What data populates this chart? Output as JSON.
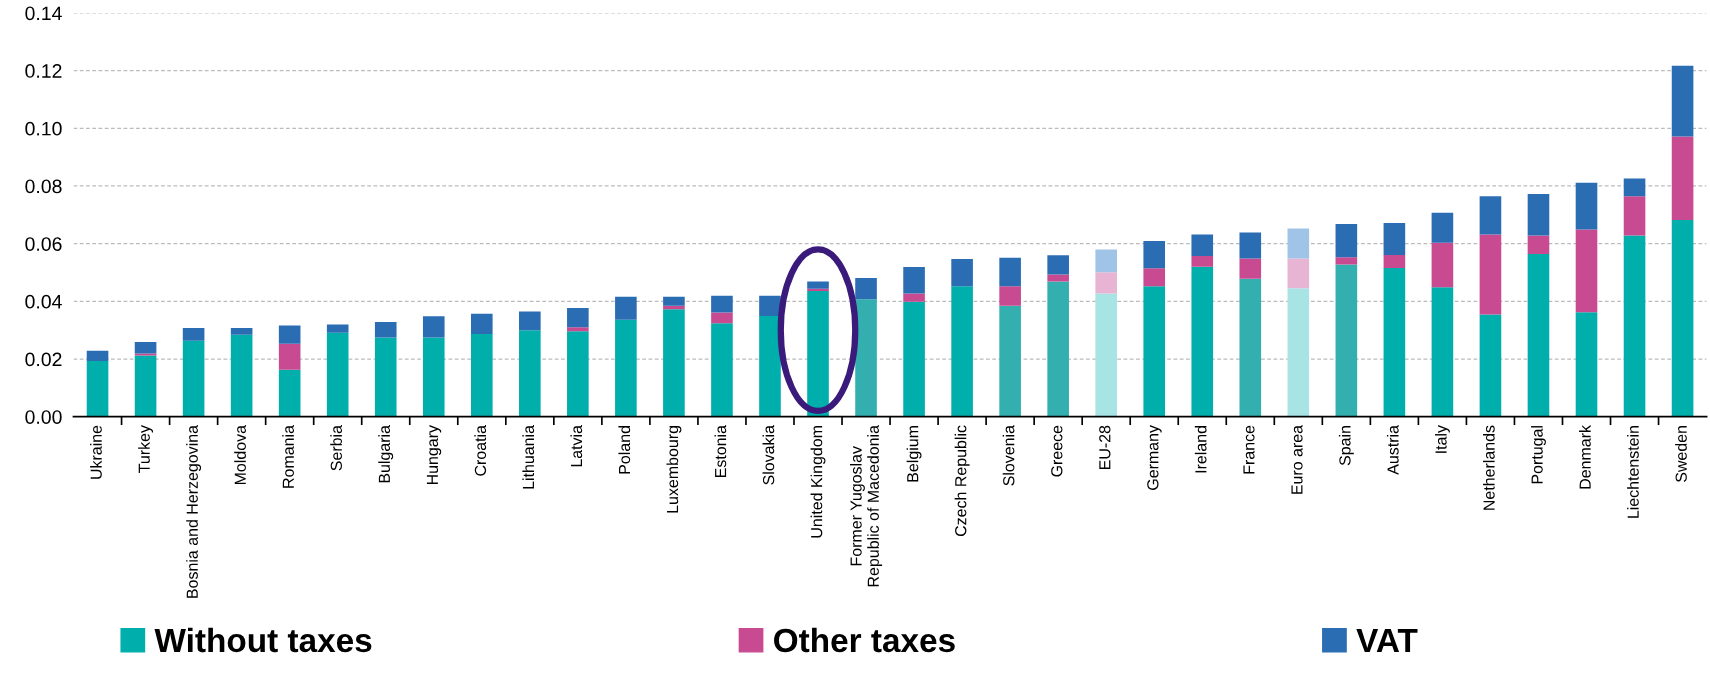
{
  "chart_data": {
    "type": "bar",
    "stacked": true,
    "categories": [
      "Ukraine",
      "Turkey",
      "Bosnia and Herzegovina",
      "Moldova",
      "Romania",
      "Serbia",
      "Bulgaria",
      "Hungary",
      "Croatia",
      "Lithuania",
      "Latvia",
      "Poland",
      "Luxembourg",
      "Estonia",
      "Slovakia",
      "United Kingdom",
      "Former Yugoslav\nRepublic of Macedonia",
      "Belgium",
      "Czech Republic",
      "Slovenia",
      "Greece",
      "EU-28",
      "Germany",
      "Ireland",
      "France",
      "Euro area",
      "Spain",
      "Austria",
      "Italy",
      "Netherlands",
      "Portugal",
      "Denmark",
      "Liechtenstein",
      "Sweden"
    ],
    "series": [
      {
        "name": "Without taxes",
        "color": "#00aeab",
        "colors": [
          "#00aeab",
          "#00aeab",
          "#00aeab",
          "#00aeab",
          "#00aeab",
          "#00aeab",
          "#00aeab",
          "#00aeab",
          "#00aeab",
          "#00aeab",
          "#00aeab",
          "#00aeab",
          "#00aeab",
          "#00aeab",
          "#00aeab",
          "#00aeab",
          "#33afaf",
          "#00aeab",
          "#00aeab",
          "#33afaf",
          "#33afaf",
          "#a8e4e4",
          "#00aeab",
          "#00aeab",
          "#33afaf",
          "#a8e4e4",
          "#33afaf",
          "#00aeab",
          "#00aeab",
          "#00aeab",
          "#00aeab",
          "#00aeab",
          "#00aeab",
          "#00aeab"
        ],
        "values": [
          0.0193,
          0.0212,
          0.0263,
          0.0284,
          0.0163,
          0.0291,
          0.0275,
          0.0275,
          0.0287,
          0.03,
          0.0296,
          0.0336,
          0.0373,
          0.0324,
          0.0349,
          0.0436,
          0.0407,
          0.0399,
          0.0452,
          0.0385,
          0.0469,
          0.0427,
          0.0452,
          0.052,
          0.0478,
          0.0445,
          0.0528,
          0.0516,
          0.0449,
          0.0354,
          0.0564,
          0.0362,
          0.0628,
          0.0682
        ]
      },
      {
        "name": "Other taxes",
        "color": "#c84b91",
        "colors": [
          "#c84b91",
          "#c84b91",
          "#c84b91",
          "#c84b91",
          "#c84b91",
          "#c84b91",
          "#c84b91",
          "#c84b91",
          "#c84b91",
          "#c84b91",
          "#c84b91",
          "#c84b91",
          "#c84b91",
          "#c84b91",
          "#c84b91",
          "#c84b91",
          "#c84b91",
          "#c84b91",
          "#c84b91",
          "#c84b91",
          "#c84b91",
          "#e8b4d4",
          "#c84b91",
          "#c84b91",
          "#c84b91",
          "#e8b4d4",
          "#c84b91",
          "#c84b91",
          "#c84b91",
          "#c84b91",
          "#c84b91",
          "#c84b91",
          "#c84b91",
          "#c84b91"
        ],
        "values": [
          0,
          0.0007,
          0,
          0,
          0.009,
          0,
          0,
          0,
          0,
          0,
          0.0014,
          0,
          0.0012,
          0.0037,
          0,
          0.0008,
          0,
          0.0028,
          0,
          0.0067,
          0.0024,
          0.0074,
          0.0063,
          0.0037,
          0.0071,
          0.0104,
          0.0025,
          0.0045,
          0.0154,
          0.0278,
          0.0064,
          0.0287,
          0.0136,
          0.029
        ]
      },
      {
        "name": "VAT",
        "color": "#2a6db3",
        "colors": [
          "#2a6db3",
          "#2a6db3",
          "#2a6db3",
          "#2a6db3",
          "#2a6db3",
          "#2a6db3",
          "#2a6db3",
          "#2a6db3",
          "#2a6db3",
          "#2a6db3",
          "#2a6db3",
          "#2a6db3",
          "#2a6db3",
          "#2a6db3",
          "#2a6db3",
          "#2a6db3",
          "#2a6db3",
          "#2a6db3",
          "#2a6db3",
          "#2a6db3",
          "#2a6db3",
          "#a0c4e8",
          "#2a6db3",
          "#2a6db3",
          "#2a6db3",
          "#a0c4e8",
          "#2a6db3",
          "#2a6db3",
          "#2a6db3",
          "#2a6db3",
          "#2a6db3",
          "#2a6db3",
          "#2a6db3",
          "#2a6db3"
        ],
        "values": [
          0.0036,
          0.004,
          0.0045,
          0.0024,
          0.0063,
          0.0029,
          0.0053,
          0.0073,
          0.007,
          0.0065,
          0.0067,
          0.008,
          0.0031,
          0.0058,
          0.007,
          0.0025,
          0.0074,
          0.0092,
          0.0095,
          0.0099,
          0.0067,
          0.0079,
          0.0094,
          0.0075,
          0.009,
          0.0104,
          0.0115,
          0.0111,
          0.0104,
          0.0132,
          0.0144,
          0.0162,
          0.0062,
          0.0245
        ]
      }
    ],
    "ylim": [
      0,
      0.14
    ],
    "yticks": [
      {
        "value": 0,
        "label": "0.00"
      },
      {
        "value": 0.02,
        "label": "0.02"
      },
      {
        "value": 0.04,
        "label": "0.04"
      },
      {
        "value": 0.06,
        "label": "0.06"
      },
      {
        "value": 0.08,
        "label": "0.08"
      },
      {
        "value": 0.1,
        "label": "0.10"
      },
      {
        "value": 0.12,
        "label": "0.12"
      },
      {
        "value": 0.14,
        "label": "0.14"
      }
    ],
    "grid": "y",
    "legend": "bottom"
  }
}
